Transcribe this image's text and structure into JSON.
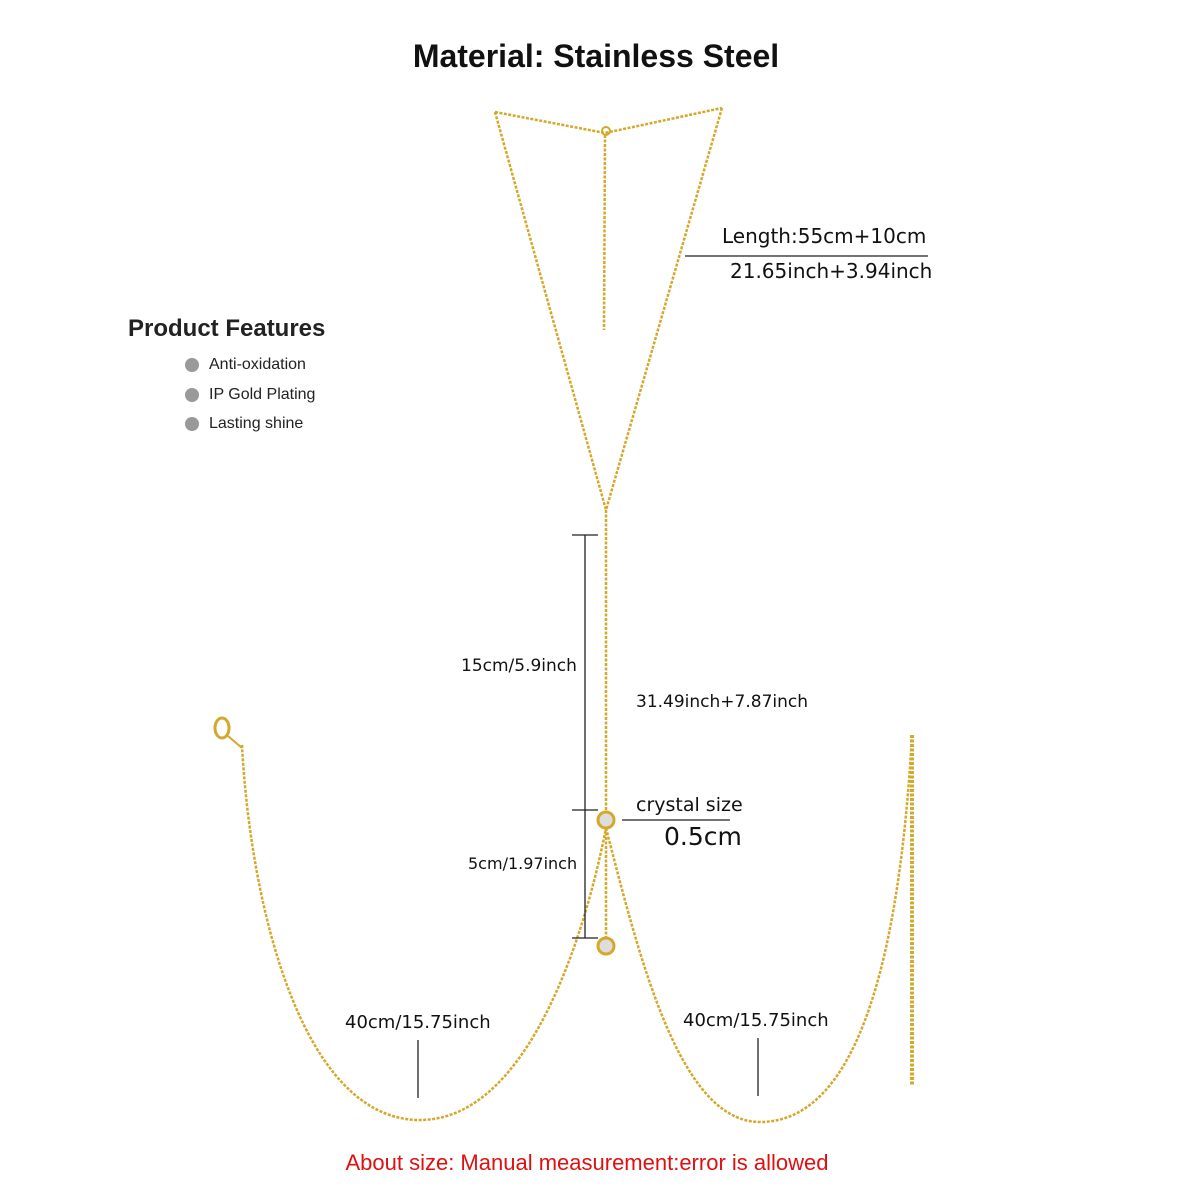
{
  "title": "Material: Stainless Steel",
  "features": {
    "heading": "Product Features",
    "items": [
      "Anti-oxidation",
      "IP Gold Plating",
      "Lasting shine"
    ]
  },
  "dimensions": {
    "length_cm": "Length:55cm+10cm",
    "length_inch": "21.65inch+3.94inch",
    "drop_upper": "15cm/5.9inch",
    "drop_total_inch": "31.49inch+7.87inch",
    "crystal_label": "crystal size",
    "crystal_size": "0.5cm",
    "drop_lower": "5cm/1.97inch",
    "left_chain": "40cm/15.75inch",
    "right_chain": "40cm/15.75inch"
  },
  "note": "About size: Manual measurement:error is allowed",
  "colors": {
    "chain": "#d4a82a",
    "note": "#e01010",
    "bullet": "#999999"
  }
}
